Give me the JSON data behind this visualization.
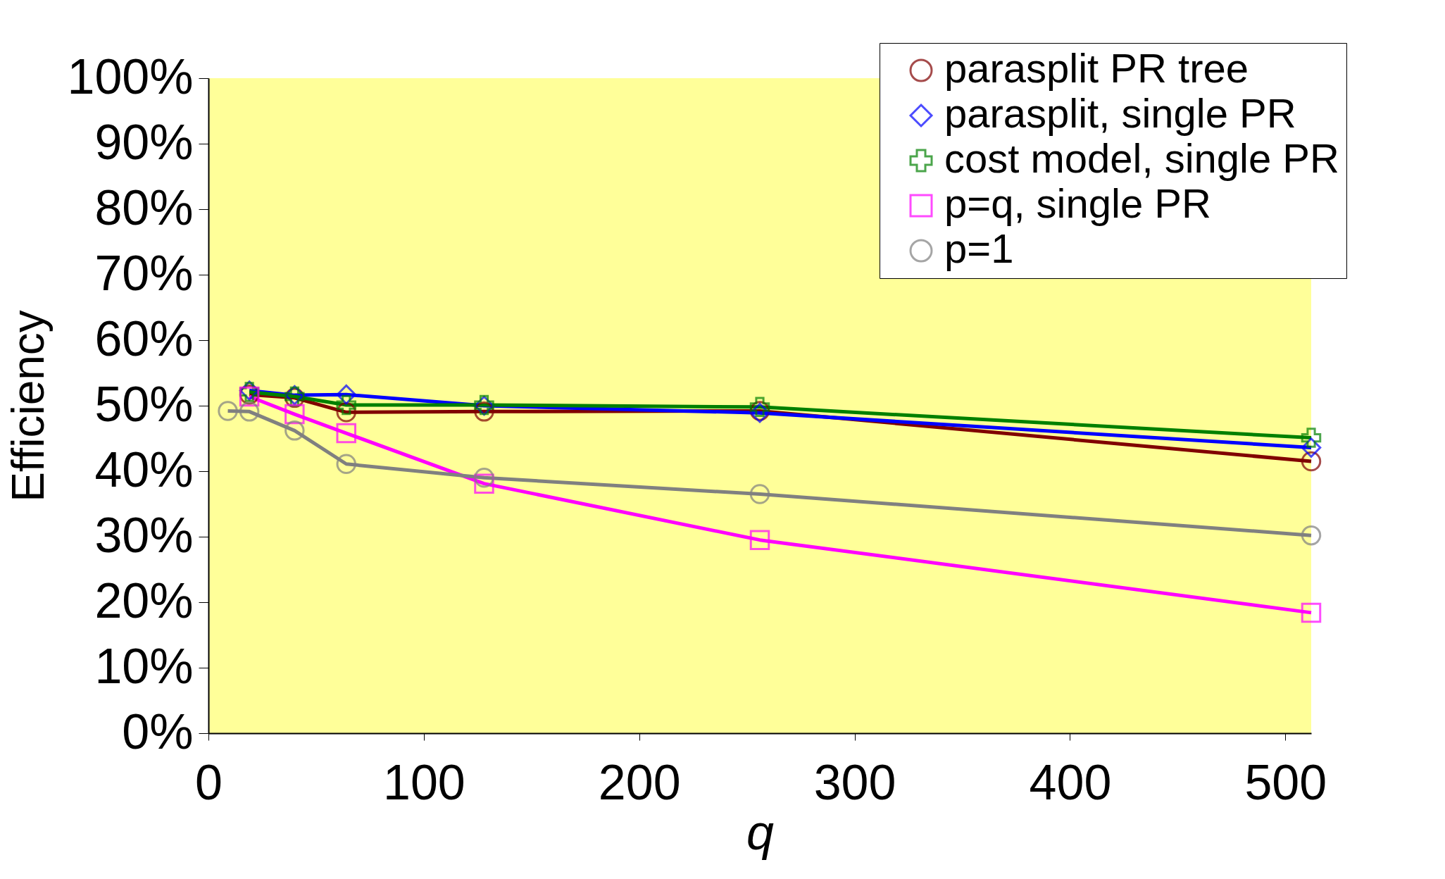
{
  "chart_data": {
    "type": "line",
    "xlabel": "q",
    "ylabel": "Efficiency",
    "xlim": [
      0,
      512
    ],
    "xticks": [
      0,
      100,
      200,
      300,
      400,
      500
    ],
    "ylim": [
      0,
      100
    ],
    "yticks": [
      {
        "value": 0,
        "label": "0%"
      },
      {
        "value": 10,
        "label": "10%"
      },
      {
        "value": 20,
        "label": "20%"
      },
      {
        "value": 30,
        "label": "30%"
      },
      {
        "value": 40,
        "label": "40%"
      },
      {
        "value": 50,
        "label": "50%"
      },
      {
        "value": 60,
        "label": "60%"
      },
      {
        "value": 70,
        "label": "70%"
      },
      {
        "value": 80,
        "label": "80%"
      },
      {
        "value": 90,
        "label": "90%"
      },
      {
        "value": 100,
        "label": "100%"
      }
    ],
    "grid": false,
    "legend": "top right",
    "line_style": "solid",
    "series": [
      {
        "name": "parasplit PR tree",
        "color": "#800000",
        "marker": "circle",
        "x": [
          19,
          40,
          64,
          128,
          256,
          512
        ],
        "values": [
          51.7,
          51.2,
          49.0,
          49.1,
          49.2,
          41.5
        ]
      },
      {
        "name": "parasplit, single PR",
        "color": "#0000ff",
        "marker": "diamond",
        "x": [
          19,
          40,
          64,
          128,
          256,
          512
        ],
        "values": [
          52.3,
          51.6,
          51.7,
          50.0,
          48.9,
          43.6
        ]
      },
      {
        "name": "cost model, single PR",
        "color": "#008000",
        "marker": "cross",
        "x": [
          19,
          40,
          64,
          128,
          256,
          512
        ],
        "values": [
          52.1,
          51.4,
          50.1,
          50.1,
          49.8,
          45.1
        ]
      },
      {
        "name": "p=q, single PR",
        "color": "#ff00ff",
        "marker": "square",
        "x": [
          19,
          40,
          64,
          128,
          256,
          512
        ],
        "values": [
          51.4,
          48.7,
          45.8,
          38.1,
          29.5,
          18.4
        ]
      },
      {
        "name": "p=1",
        "color": "#808080",
        "marker": "circle",
        "x": [
          9,
          19,
          40,
          64,
          128,
          256,
          512
        ],
        "values": [
          49.2,
          49.1,
          46.2,
          41.1,
          39.0,
          36.5,
          30.2
        ]
      }
    ]
  }
}
